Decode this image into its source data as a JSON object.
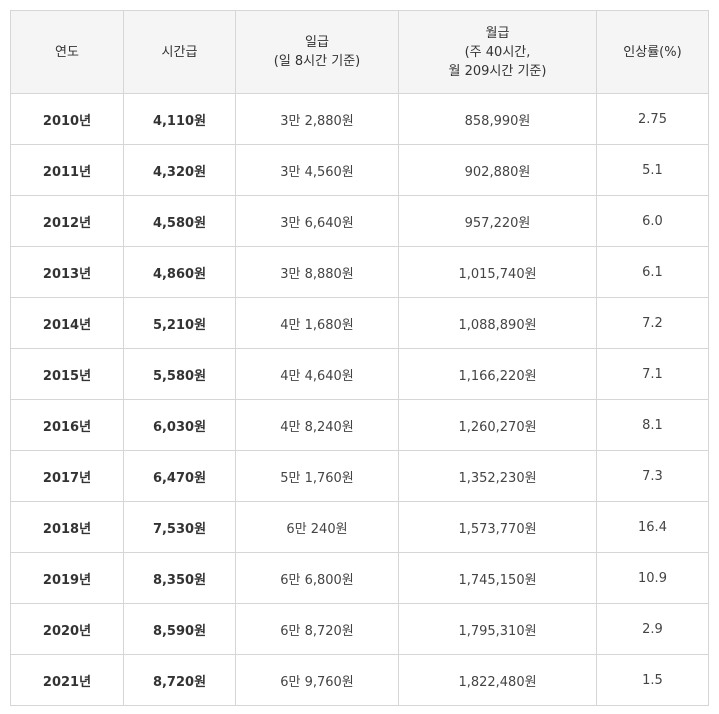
{
  "table": {
    "headers": {
      "year": "연도",
      "hourly": "시간급",
      "daily": [
        "일급",
        "(일 8시간 기준)"
      ],
      "monthly": [
        "월급",
        "(주 40시간,",
        "월 209시간 기준)"
      ],
      "rate": "인상률(%)"
    },
    "rows": [
      {
        "year": "2010년",
        "hourly": "4,110원",
        "daily": "3만 2,880원",
        "monthly": "858,990원",
        "rate": "2.75"
      },
      {
        "year": "2011년",
        "hourly": "4,320원",
        "daily": "3만 4,560원",
        "monthly": "902,880원",
        "rate": "5.1"
      },
      {
        "year": "2012년",
        "hourly": "4,580원",
        "daily": "3만 6,640원",
        "monthly": "957,220원",
        "rate": "6.0"
      },
      {
        "year": "2013년",
        "hourly": "4,860원",
        "daily": "3만 8,880원",
        "monthly": "1,015,740원",
        "rate": "6.1"
      },
      {
        "year": "2014년",
        "hourly": "5,210원",
        "daily": "4만 1,680원",
        "monthly": "1,088,890원",
        "rate": "7.2"
      },
      {
        "year": "2015년",
        "hourly": "5,580원",
        "daily": "4만 4,640원",
        "monthly": "1,166,220원",
        "rate": "7.1"
      },
      {
        "year": "2016년",
        "hourly": "6,030원",
        "daily": "4만 8,240원",
        "monthly": "1,260,270원",
        "rate": "8.1"
      },
      {
        "year": "2017년",
        "hourly": "6,470원",
        "daily": "5만 1,760원",
        "monthly": "1,352,230원",
        "rate": "7.3"
      },
      {
        "year": "2018년",
        "hourly": "7,530원",
        "daily": "6만 240원",
        "monthly": "1,573,770원",
        "rate": "16.4"
      },
      {
        "year": "2019년",
        "hourly": "8,350원",
        "daily": "6만 6,800원",
        "monthly": "1,745,150원",
        "rate": "10.9"
      },
      {
        "year": "2020년",
        "hourly": "8,590원",
        "daily": "6만 8,720원",
        "monthly": "1,795,310원",
        "rate": "2.9"
      },
      {
        "year": "2021년",
        "hourly": "8,720원",
        "daily": "6만 9,760원",
        "monthly": "1,822,480원",
        "rate": "1.5"
      }
    ]
  }
}
